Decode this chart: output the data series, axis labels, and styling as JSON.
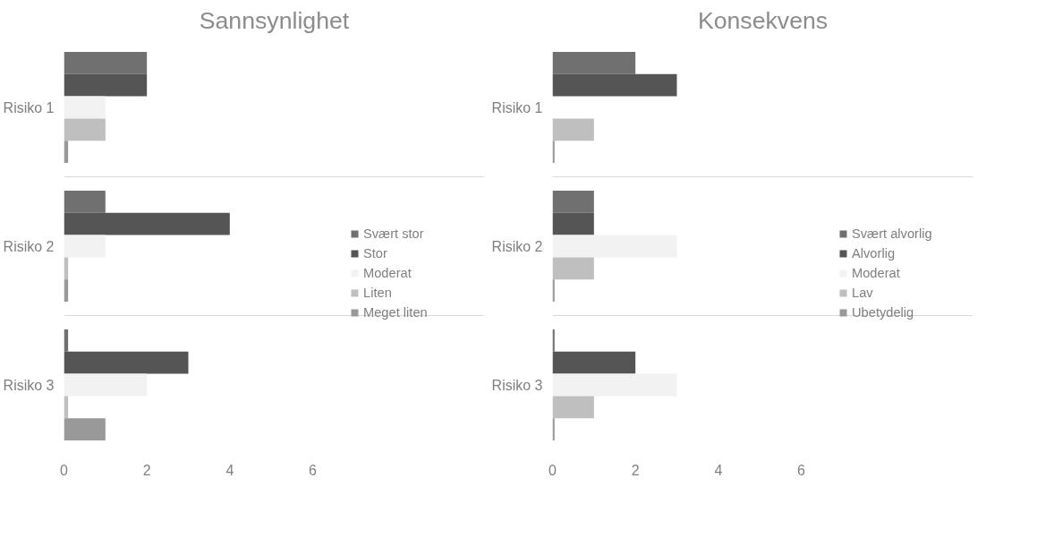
{
  "chart_data": [
    {
      "type": "bar",
      "orientation": "horizontal",
      "title": "Sannsynlighet",
      "categories": [
        "Risiko 1",
        "Risiko 2",
        "Risiko 3"
      ],
      "xlim": [
        0,
        6
      ],
      "xticks": [
        0,
        2,
        4,
        6
      ],
      "grid": "y",
      "legend": "right",
      "series": [
        {
          "name": "Svært stor",
          "color": "#707070",
          "values": [
            2,
            1,
            0.1
          ]
        },
        {
          "name": "Stor",
          "color": "#555555",
          "values": [
            2,
            4,
            3
          ]
        },
        {
          "name": "Moderat",
          "color": "#f2f2f2",
          "values": [
            1,
            1,
            2
          ]
        },
        {
          "name": "Liten",
          "color": "#bfbfbf",
          "values": [
            1,
            0.1,
            0.1
          ]
        },
        {
          "name": "Meget liten",
          "color": "#999999",
          "values": [
            0.1,
            0.1,
            1
          ]
        }
      ]
    },
    {
      "type": "bar",
      "orientation": "horizontal",
      "title": "Konsekvens",
      "categories": [
        "Risiko 1",
        "Risiko 2",
        "Risiko 3"
      ],
      "xlim": [
        0,
        6
      ],
      "xticks": [
        0,
        2,
        4,
        6
      ],
      "grid": "y",
      "legend": "right",
      "series": [
        {
          "name": "Svært alvorlig",
          "color": "#707070",
          "values": [
            2,
            1,
            0.05
          ]
        },
        {
          "name": "Alvorlig",
          "color": "#555555",
          "values": [
            3,
            1,
            2
          ]
        },
        {
          "name": "Moderat",
          "color": "#f2f2f2",
          "values": [
            0,
            3,
            3
          ]
        },
        {
          "name": "Lav",
          "color": "#bfbfbf",
          "values": [
            1,
            1,
            1
          ]
        },
        {
          "name": "Ubetydelig",
          "color": "#999999",
          "values": [
            0.05,
            0.05,
            0.05
          ]
        }
      ]
    }
  ]
}
